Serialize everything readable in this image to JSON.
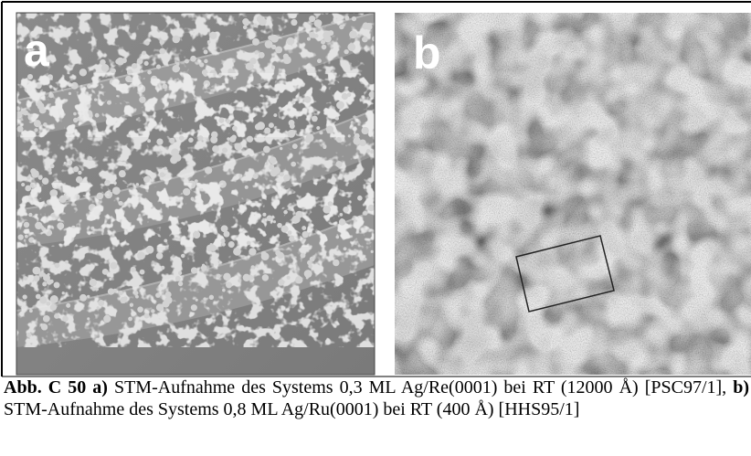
{
  "figure": {
    "panels": [
      {
        "label": "a"
      },
      {
        "label": "b"
      }
    ],
    "caption": {
      "figure_label": "Abb. C 50",
      "a_label": "a)",
      "a_text": "STM-Aufnahme des Systems 0,3 ML Ag/Re(0001) bei RT (12000 Å) [PSC97/1],",
      "b_label": "b)",
      "b_text": "STM-Aufnahme des Systems 0,8 ML Ag/Ru(0001) bei RT (400 Å) [HHS95/1]"
    }
  }
}
